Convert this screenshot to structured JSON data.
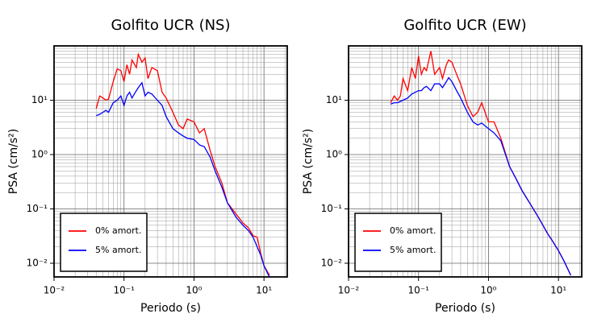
{
  "chart_data": [
    {
      "type": "line",
      "title": "Golfito UCR (NS)",
      "xlabel": "Periodo (s)",
      "ylabel": "PSA (cm/s²)",
      "xscale": "log",
      "yscale": "log",
      "grid": true,
      "legend": "lower left",
      "xlim": [
        0.01,
        21.5
      ],
      "ylim": [
        0.0056,
        100
      ],
      "xticks": [
        {
          "value": 0.01,
          "label": "10⁻²"
        },
        {
          "value": 0.1,
          "label": "10⁻¹"
        },
        {
          "value": 1,
          "label": "10⁰"
        },
        {
          "value": 10,
          "label": "10¹"
        }
      ],
      "yticks": [
        {
          "value": 0.01,
          "label": "10⁻²"
        },
        {
          "value": 0.1,
          "label": "10⁻¹"
        },
        {
          "value": 1,
          "label": "10⁰"
        },
        {
          "value": 10,
          "label": "10¹"
        }
      ],
      "x": [
        0.04,
        0.045,
        0.05,
        0.055,
        0.06,
        0.07,
        0.08,
        0.09,
        0.1,
        0.11,
        0.12,
        0.13,
        0.15,
        0.16,
        0.18,
        0.2,
        0.22,
        0.25,
        0.3,
        0.35,
        0.4,
        0.5,
        0.6,
        0.7,
        0.8,
        1.0,
        1.2,
        1.4,
        1.7,
        2.0,
        2.5,
        3,
        4,
        5,
        6,
        7,
        8,
        9,
        10,
        12
      ],
      "series": [
        {
          "name": "0% amort.",
          "color": "#ff0000",
          "values": [
            7,
            12,
            11,
            10,
            10.5,
            22,
            38,
            35,
            22,
            45,
            30,
            55,
            40,
            70,
            50,
            60,
            25,
            40,
            35,
            14,
            11,
            6,
            3.5,
            3,
            4.5,
            4,
            2.5,
            3,
            1.2,
            0.6,
            0.3,
            0.13,
            0.08,
            0.055,
            0.045,
            0.032,
            0.03,
            0.015,
            0.009,
            0.006
          ]
        },
        {
          "name": "5% amort.",
          "color": "#0000ff",
          "values": [
            5.2,
            5.5,
            6,
            6.5,
            6,
            9,
            10,
            12,
            8,
            12,
            14,
            11,
            15,
            17,
            21,
            12,
            14,
            13,
            10,
            8,
            5,
            3,
            2.5,
            2.2,
            2.0,
            1.9,
            1.5,
            1.4,
            0.9,
            0.5,
            0.25,
            0.13,
            0.07,
            0.05,
            0.04,
            0.03,
            0.02,
            0.014,
            0.009,
            0.0055
          ]
        }
      ]
    },
    {
      "type": "line",
      "title": "Golfito UCR (EW)",
      "xlabel": "Periodo (s)",
      "ylabel": "PSA (cm/s²)",
      "xscale": "log",
      "yscale": "log",
      "grid": true,
      "legend": "lower left",
      "xlim": [
        0.01,
        21.5
      ],
      "ylim": [
        0.0056,
        100
      ],
      "xticks": [
        {
          "value": 0.01,
          "label": "10⁻²"
        },
        {
          "value": 0.1,
          "label": "10⁻¹"
        },
        {
          "value": 1,
          "label": "10⁰"
        },
        {
          "value": 10,
          "label": "10¹"
        }
      ],
      "yticks": [
        {
          "value": 0.01,
          "label": "10⁻²"
        },
        {
          "value": 0.1,
          "label": "10⁻¹"
        },
        {
          "value": 1,
          "label": "10⁰"
        },
        {
          "value": 10,
          "label": "10¹"
        }
      ],
      "x": [
        0.04,
        0.045,
        0.05,
        0.055,
        0.06,
        0.07,
        0.08,
        0.09,
        0.1,
        0.11,
        0.12,
        0.13,
        0.15,
        0.17,
        0.2,
        0.22,
        0.25,
        0.27,
        0.3,
        0.35,
        0.4,
        0.5,
        0.6,
        0.7,
        0.8,
        1.0,
        1.2,
        1.5,
        2.0,
        2.5,
        3,
        4,
        5,
        6,
        7,
        8,
        10,
        12,
        15
      ],
      "series": [
        {
          "name": "0% amort.",
          "color": "#ff0000",
          "values": [
            9,
            12,
            10,
            12,
            25,
            15,
            40,
            25,
            65,
            30,
            40,
            35,
            80,
            30,
            40,
            25,
            45,
            55,
            50,
            30,
            20,
            8,
            5,
            6,
            9,
            4,
            4,
            2,
            0.6,
            0.35,
            0.22,
            0.12,
            0.075,
            0.05,
            0.035,
            0.027,
            0.017,
            0.011,
            0.006
          ]
        },
        {
          "name": "5% amort.",
          "color": "#0000ff",
          "values": [
            8.5,
            9,
            9,
            9.5,
            10,
            11,
            13,
            14,
            15,
            15,
            17,
            18,
            15,
            20,
            20,
            17,
            22,
            26,
            22,
            15,
            11,
            6,
            4,
            3.5,
            3.8,
            3,
            2.5,
            1.8,
            0.6,
            0.35,
            0.22,
            0.12,
            0.075,
            0.05,
            0.035,
            0.027,
            0.017,
            0.011,
            0.006
          ]
        }
      ]
    }
  ]
}
